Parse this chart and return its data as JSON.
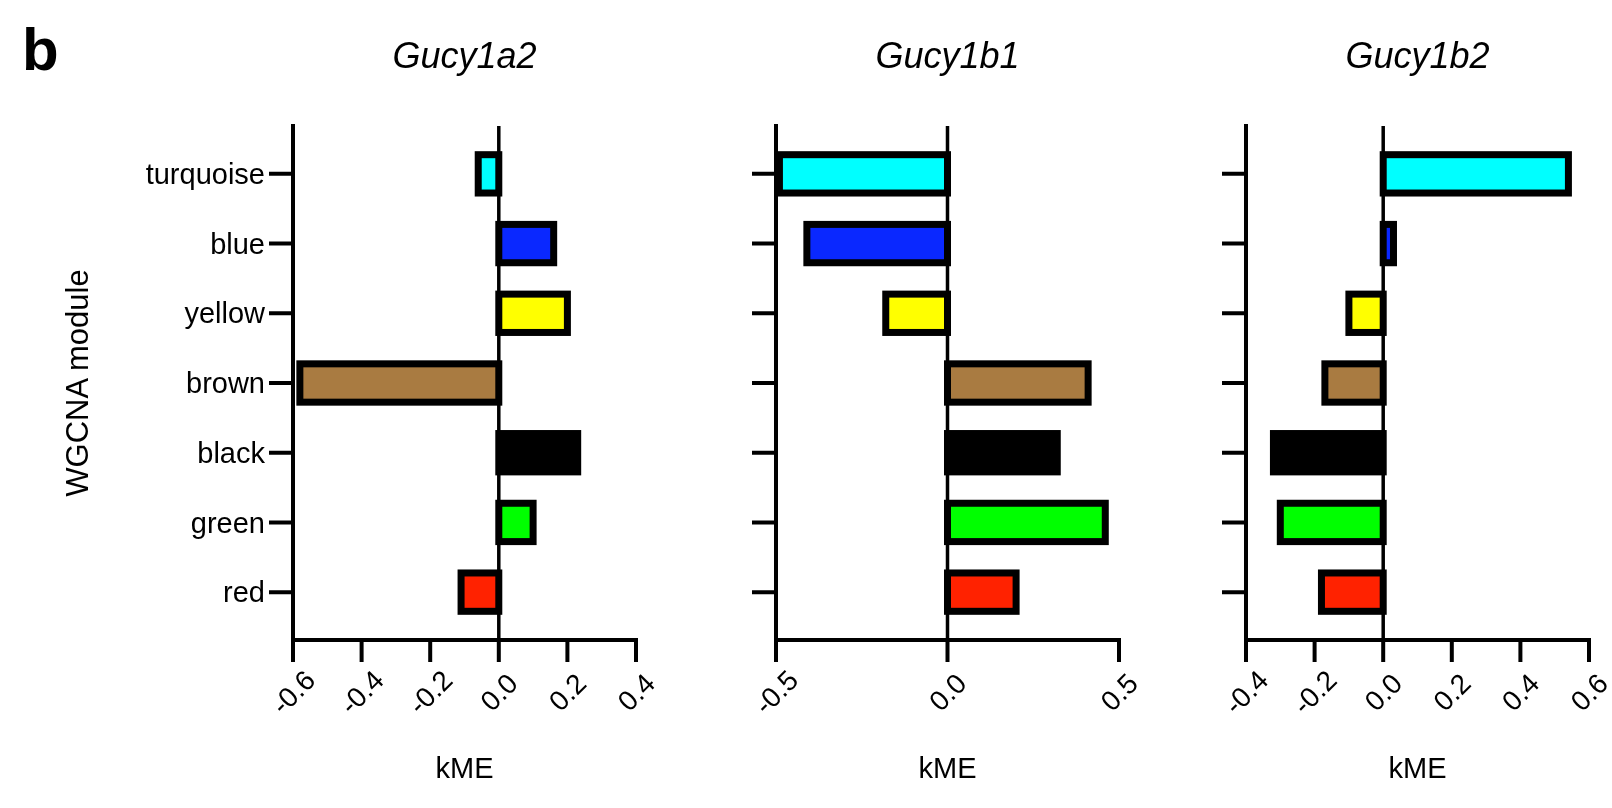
{
  "chart_data": [
    {
      "type": "bar",
      "orientation": "horizontal",
      "title": "Gucy1a2",
      "xlabel": "kME",
      "ylabel": "WGCNA module",
      "annotations": [
        "b"
      ],
      "categories": [
        "turquoise",
        "blue",
        "yellow",
        "brown",
        "black",
        "green",
        "red"
      ],
      "values": [
        -0.06,
        0.16,
        0.2,
        -0.58,
        0.23,
        0.1,
        -0.11
      ],
      "colors": [
        "#00ffff",
        "#0a28ff",
        "#ffff00",
        "#a97b41",
        "#000000",
        "#00ff00",
        "#ff2200"
      ],
      "xlim": [
        -0.6,
        0.4
      ],
      "xticks": [
        {
          "value": -0.6,
          "label": "-0.6"
        },
        {
          "value": -0.4,
          "label": "-0.4"
        },
        {
          "value": -0.2,
          "label": "-0.2"
        },
        {
          "value": 0,
          "label": "0.0"
        },
        {
          "value": 0.2,
          "label": "0.2"
        },
        {
          "value": 0.4,
          "label": "0.4"
        }
      ],
      "ref_lines": [
        {
          "axis": "x",
          "value": 0
        }
      ]
    },
    {
      "type": "bar",
      "orientation": "horizontal",
      "title": "Gucy1b1",
      "xlabel": "kME",
      "tick_labels": "x",
      "categories": [
        null,
        null,
        null,
        null,
        null,
        null,
        null
      ],
      "values": [
        -0.49,
        -0.41,
        -0.18,
        0.41,
        0.32,
        0.46,
        0.2
      ],
      "colors": [
        "#00ffff",
        "#0a28ff",
        "#ffff00",
        "#a97b41",
        "#000000",
        "#00ff00",
        "#ff2200"
      ],
      "xlim": [
        -0.5,
        0.5
      ],
      "xticks": [
        {
          "value": -0.5,
          "label": "-0.5"
        },
        {
          "value": 0,
          "label": "0.0"
        },
        {
          "value": 0.5,
          "label": "0.5"
        }
      ],
      "ref_lines": [
        {
          "axis": "x",
          "value": 0
        }
      ]
    },
    {
      "type": "bar",
      "orientation": "horizontal",
      "title": "Gucy1b2",
      "xlabel": "kME",
      "tick_labels": "x",
      "categories": [
        null,
        null,
        null,
        null,
        null,
        null,
        null
      ],
      "values": [
        0.54,
        0.03,
        -0.1,
        -0.17,
        -0.32,
        -0.3,
        -0.18
      ],
      "colors": [
        "#00ffff",
        "#0a28ff",
        "#ffff00",
        "#a97b41",
        "#000000",
        "#00ff00",
        "#ff2200"
      ],
      "xlim": [
        -0.4,
        0.6
      ],
      "xticks": [
        {
          "value": -0.4,
          "label": "-0.4"
        },
        {
          "value": -0.2,
          "label": "-0.2"
        },
        {
          "value": 0,
          "label": "0.0"
        },
        {
          "value": 0.2,
          "label": "0.2"
        },
        {
          "value": 0.4,
          "label": "0.4"
        },
        {
          "value": 0.6,
          "label": "0.6"
        }
      ],
      "ref_lines": [
        {
          "axis": "x",
          "value": 0
        }
      ]
    }
  ]
}
